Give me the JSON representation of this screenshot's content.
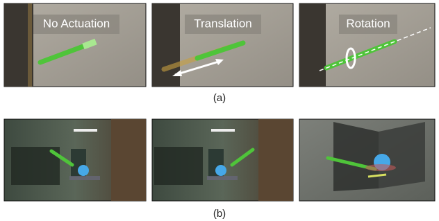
{
  "rows": [
    {
      "panels": [
        {
          "label": "No Actuation"
        },
        {
          "label": "Translation"
        },
        {
          "label": "Rotation"
        }
      ],
      "caption": "(a)"
    },
    {
      "caption": "(b)"
    }
  ]
}
